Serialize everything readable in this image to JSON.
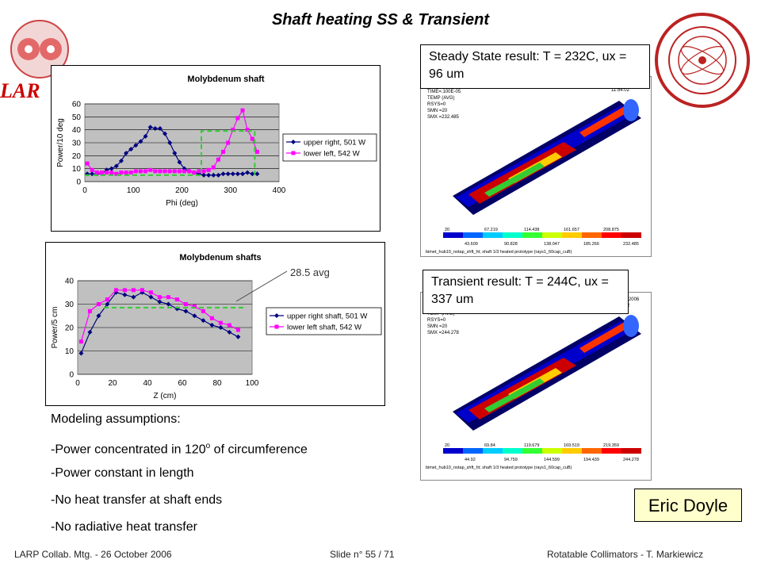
{
  "slide": {
    "title": "Shaft heating SS & Transient",
    "logo_left": "LAR",
    "footer_left": "LARP Collab. Mtg.  - 26 October 2006",
    "footer_center": "Slide n° 55 / 71",
    "footer_right": "Rotatable Collimators - T. Markiewicz",
    "author": "Eric Doyle"
  },
  "callouts": {
    "steady": "Steady State result: T = 232C, ux = 96 um",
    "transient": "Transient result: T = 244C, ux = 337 um",
    "avg": "28.5 avg"
  },
  "notes": {
    "heading": "Modeling assumptions:",
    "line1_pre": "-Power concentrated in 120",
    "line1_sup": "o",
    "line1_post": " of circumference",
    "line2": "-Power constant in length",
    "line3": "-No heat transfer at shaft ends",
    "line4": "-No radiative heat transfer"
  },
  "chart_data": [
    {
      "type": "line",
      "title": "Molybdenum shaft",
      "xlabel": "Phi (deg)",
      "ylabel": "Power/10 deg",
      "xlim": [
        0,
        400
      ],
      "ylim": [
        0,
        60
      ],
      "xticks": [
        0,
        100,
        200,
        300,
        400
      ],
      "yticks": [
        0,
        10,
        20,
        30,
        40,
        50,
        60
      ],
      "grid": true,
      "legend": "right",
      "series": [
        {
          "name": "upper right, 501 W",
          "color": "#000080",
          "marker": "diamond",
          "x": [
            5,
            15,
            25,
            35,
            45,
            55,
            65,
            75,
            85,
            95,
            105,
            115,
            125,
            135,
            145,
            155,
            165,
            175,
            185,
            195,
            205,
            215,
            225,
            235,
            245,
            255,
            265,
            275,
            285,
            295,
            305,
            315,
            325,
            335,
            345,
            355
          ],
          "y": [
            6,
            6,
            6,
            6,
            9,
            10,
            12,
            16,
            22,
            25,
            28,
            31,
            35,
            42,
            41,
            41,
            37,
            30,
            22,
            15,
            10,
            8,
            7,
            6,
            5,
            5,
            5,
            5,
            6,
            6,
            6,
            6,
            6,
            7,
            6,
            6
          ]
        },
        {
          "name": "lower left, 542 W",
          "color": "#ff00ff",
          "marker": "square",
          "x": [
            5,
            15,
            25,
            35,
            45,
            55,
            65,
            75,
            85,
            95,
            105,
            115,
            125,
            135,
            145,
            155,
            165,
            175,
            185,
            195,
            205,
            215,
            225,
            235,
            245,
            255,
            265,
            275,
            285,
            295,
            305,
            315,
            325,
            335,
            345,
            355
          ],
          "y": [
            14,
            9,
            7,
            7,
            7,
            7,
            6,
            7,
            7,
            7,
            8,
            8,
            8,
            9,
            8,
            8,
            8,
            8,
            8,
            8,
            8,
            8,
            7,
            8,
            8,
            9,
            11,
            17,
            23,
            30,
            40,
            49,
            55,
            40,
            33,
            23
          ]
        },
        {
          "name": "",
          "color": "#33cc33",
          "dashed": true,
          "x": [
            0,
            240,
            240,
            350,
            350
          ],
          "y": [
            5,
            5,
            39,
            39,
            5
          ]
        }
      ]
    },
    {
      "type": "line",
      "title": "Molybdenum shafts",
      "xlabel": "Z (cm)",
      "ylabel": "Power/5 cm",
      "xlim": [
        0,
        100
      ],
      "ylim": [
        0,
        40
      ],
      "xticks": [
        0,
        20,
        40,
        60,
        80,
        100
      ],
      "yticks": [
        0,
        10,
        20,
        30,
        40
      ],
      "grid": true,
      "legend": "right",
      "series": [
        {
          "name": "upper right shaft, 501 W",
          "color": "#000080",
          "marker": "diamond",
          "x": [
            2,
            7,
            12,
            17,
            22,
            27,
            32,
            37,
            42,
            47,
            52,
            57,
            62,
            67,
            72,
            77,
            82,
            87,
            92
          ],
          "y": [
            9,
            18,
            25,
            30,
            35,
            34,
            33,
            35,
            33,
            31,
            30,
            28,
            27,
            25,
            23,
            21,
            20,
            18,
            16
          ]
        },
        {
          "name": "lower left shaft, 542 W",
          "color": "#ff00ff",
          "marker": "square",
          "x": [
            2,
            7,
            12,
            17,
            22,
            27,
            32,
            37,
            42,
            47,
            52,
            57,
            62,
            67,
            72,
            77,
            82,
            87,
            92
          ],
          "y": [
            14,
            27,
            30,
            32,
            36,
            36,
            36,
            36,
            35,
            33,
            33,
            32,
            30,
            29,
            27,
            24,
            22,
            21,
            19
          ]
        },
        {
          "name": "",
          "color": "#33cc33",
          "dashed": true,
          "x": [
            15,
            95
          ],
          "y": [
            28.5,
            28.5
          ]
        }
      ]
    }
  ],
  "sim_panels": [
    {
      "legend_values_top": [
        "20",
        "67.219",
        "114.438",
        "161.657",
        "208.875"
      ],
      "legend_values_bottom": [
        "43.609",
        "90.828",
        "138.047",
        "185.266",
        "232.485"
      ],
      "caption": "bimet_hub10_notap_shft_ht; shaft 1/3 heated prototype (rays1_60cap_cuB)",
      "info": [
        "SUB =1",
        "TIME=.100E-05",
        "TEMP   (AVG)",
        "RSYS=0",
        "SMN =20",
        "SMX =232.485"
      ],
      "date": [
        "SEP 14 2006",
        "11:54:02"
      ]
    },
    {
      "legend_values_top": [
        "20",
        "69.84",
        "119.679",
        "169.519",
        "219.359"
      ],
      "legend_values_bottom": [
        "44.92",
        "94.759",
        "144.599",
        "194.439",
        "244.278"
      ],
      "caption": "bimet_hub10_notap_shft_ht; shaft 1/3 heated prototype (rays1_60cap_cuB)",
      "info": [
        "SUB =20",
        "TIME=10",
        "TEMP   (AVG)",
        "RSYS=0",
        "SMN =20",
        "SMX =244.278"
      ],
      "date": [
        "SEP 14 2006",
        "12:20:22"
      ]
    }
  ],
  "colors": {
    "plot_bg": "#c0c0c0",
    "callout_bg": "#ffffff",
    "author_bg": "#ffffcc",
    "sim_bg": "#000066"
  }
}
